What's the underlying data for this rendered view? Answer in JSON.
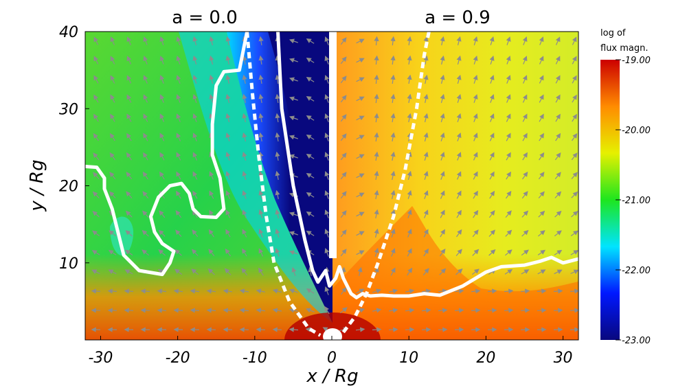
{
  "chart_data": {
    "type": "heatmap",
    "panel_titles": [
      "a = 0.0",
      "a = 0.9"
    ],
    "xlabel": "x / Rg",
    "ylabel": "y / Rg",
    "xlim": [
      -32,
      32
    ],
    "ylim": [
      0,
      40
    ],
    "x_ticks": [
      {
        "value": -30,
        "label": "-30"
      },
      {
        "value": -20,
        "label": "-20"
      },
      {
        "value": -10,
        "label": "-10"
      },
      {
        "value": 0,
        "label": "0"
      },
      {
        "value": 10,
        "label": "10"
      },
      {
        "value": 20,
        "label": "20"
      },
      {
        "value": 30,
        "label": "30"
      }
    ],
    "y_ticks": [
      {
        "value": 10,
        "label": "10"
      },
      {
        "value": 20,
        "label": "20"
      },
      {
        "value": 30,
        "label": "30"
      },
      {
        "value": 40,
        "label": "40"
      }
    ],
    "colorbar": {
      "title_lines": [
        "log of",
        "flux magn."
      ],
      "range": [
        -23.0,
        -19.0
      ],
      "ticks": [
        {
          "value": -19.0,
          "label": "-19.00"
        },
        {
          "value": -20.0,
          "label": "-20.00"
        },
        {
          "value": -21.0,
          "label": "-21.00"
        },
        {
          "value": -22.0,
          "label": "-22.00"
        },
        {
          "value": -23.0,
          "label": "-23.00"
        }
      ],
      "colors": [
        "#08087e",
        "#0018ff",
        "#00e4ff",
        "#1ee61e",
        "#e6f000",
        "#ff8c00",
        "#cc0000"
      ]
    },
    "contours": [
      {
        "name": "left solid",
        "style": "solid",
        "points": [
          [
            -32,
            22.5
          ],
          [
            -30.5,
            22.4
          ],
          [
            -29.5,
            21
          ],
          [
            -29.5,
            19.6
          ],
          [
            -28.5,
            17
          ],
          [
            -27.5,
            13
          ],
          [
            -27,
            11
          ],
          [
            -25,
            9
          ],
          [
            -22,
            8.5
          ],
          [
            -21,
            10
          ],
          [
            -20.5,
            11.5
          ],
          [
            -22,
            12.5
          ],
          [
            -23,
            14
          ],
          [
            -23.5,
            16
          ],
          [
            -22.5,
            18.5
          ],
          [
            -21,
            20
          ],
          [
            -19.5,
            20.3
          ],
          [
            -18.5,
            19
          ],
          [
            -18,
            17
          ],
          [
            -17,
            16
          ],
          [
            -15,
            15.9
          ],
          [
            -14,
            17
          ],
          [
            -14.5,
            21
          ],
          [
            -15.5,
            24
          ],
          [
            -15.5,
            28
          ],
          [
            -15,
            33
          ],
          [
            -14,
            34.8
          ],
          [
            -12,
            35
          ],
          [
            -11,
            40
          ]
        ]
      },
      {
        "name": "left dashed",
        "style": "dashed",
        "points": [
          [
            -11,
            40
          ],
          [
            -10.3,
            32
          ],
          [
            -9.5,
            24
          ],
          [
            -8.5,
            16
          ],
          [
            -7.5,
            10
          ],
          [
            -5.5,
            5
          ],
          [
            -3,
            1.5
          ],
          [
            -1.5,
            0.6
          ]
        ]
      },
      {
        "name": "center solid",
        "style": "solid",
        "points": [
          [
            -7,
            40
          ],
          [
            -6.5,
            30
          ],
          [
            -5,
            20
          ],
          [
            -3.5,
            13
          ],
          [
            -2.5,
            9
          ],
          [
            -1.8,
            7.5
          ],
          [
            -0.8,
            9
          ],
          [
            -0.3,
            7
          ],
          [
            0.5,
            8
          ],
          [
            1,
            9.5
          ],
          [
            1.5,
            8
          ],
          [
            2.5,
            6
          ],
          [
            3.2,
            5.5
          ],
          [
            4,
            6
          ],
          [
            5,
            5.7
          ],
          [
            6.5,
            5.8
          ],
          [
            8,
            5.7
          ],
          [
            10,
            5.7
          ],
          [
            12,
            6
          ],
          [
            14,
            5.8
          ],
          [
            17,
            7
          ],
          [
            20,
            8.8
          ],
          [
            22,
            9.5
          ],
          [
            25,
            9.7
          ],
          [
            27,
            10.2
          ],
          [
            28.5,
            10.7
          ],
          [
            30,
            10
          ],
          [
            32,
            10.5
          ]
        ]
      },
      {
        "name": "right dashed",
        "style": "dashed",
        "points": [
          [
            1.5,
            1
          ],
          [
            3,
            3
          ],
          [
            4.5,
            6
          ],
          [
            6,
            10
          ],
          [
            8,
            16
          ],
          [
            9.5,
            22
          ],
          [
            11,
            30
          ],
          [
            12,
            37
          ],
          [
            12.6,
            40
          ]
        ]
      }
    ]
  }
}
